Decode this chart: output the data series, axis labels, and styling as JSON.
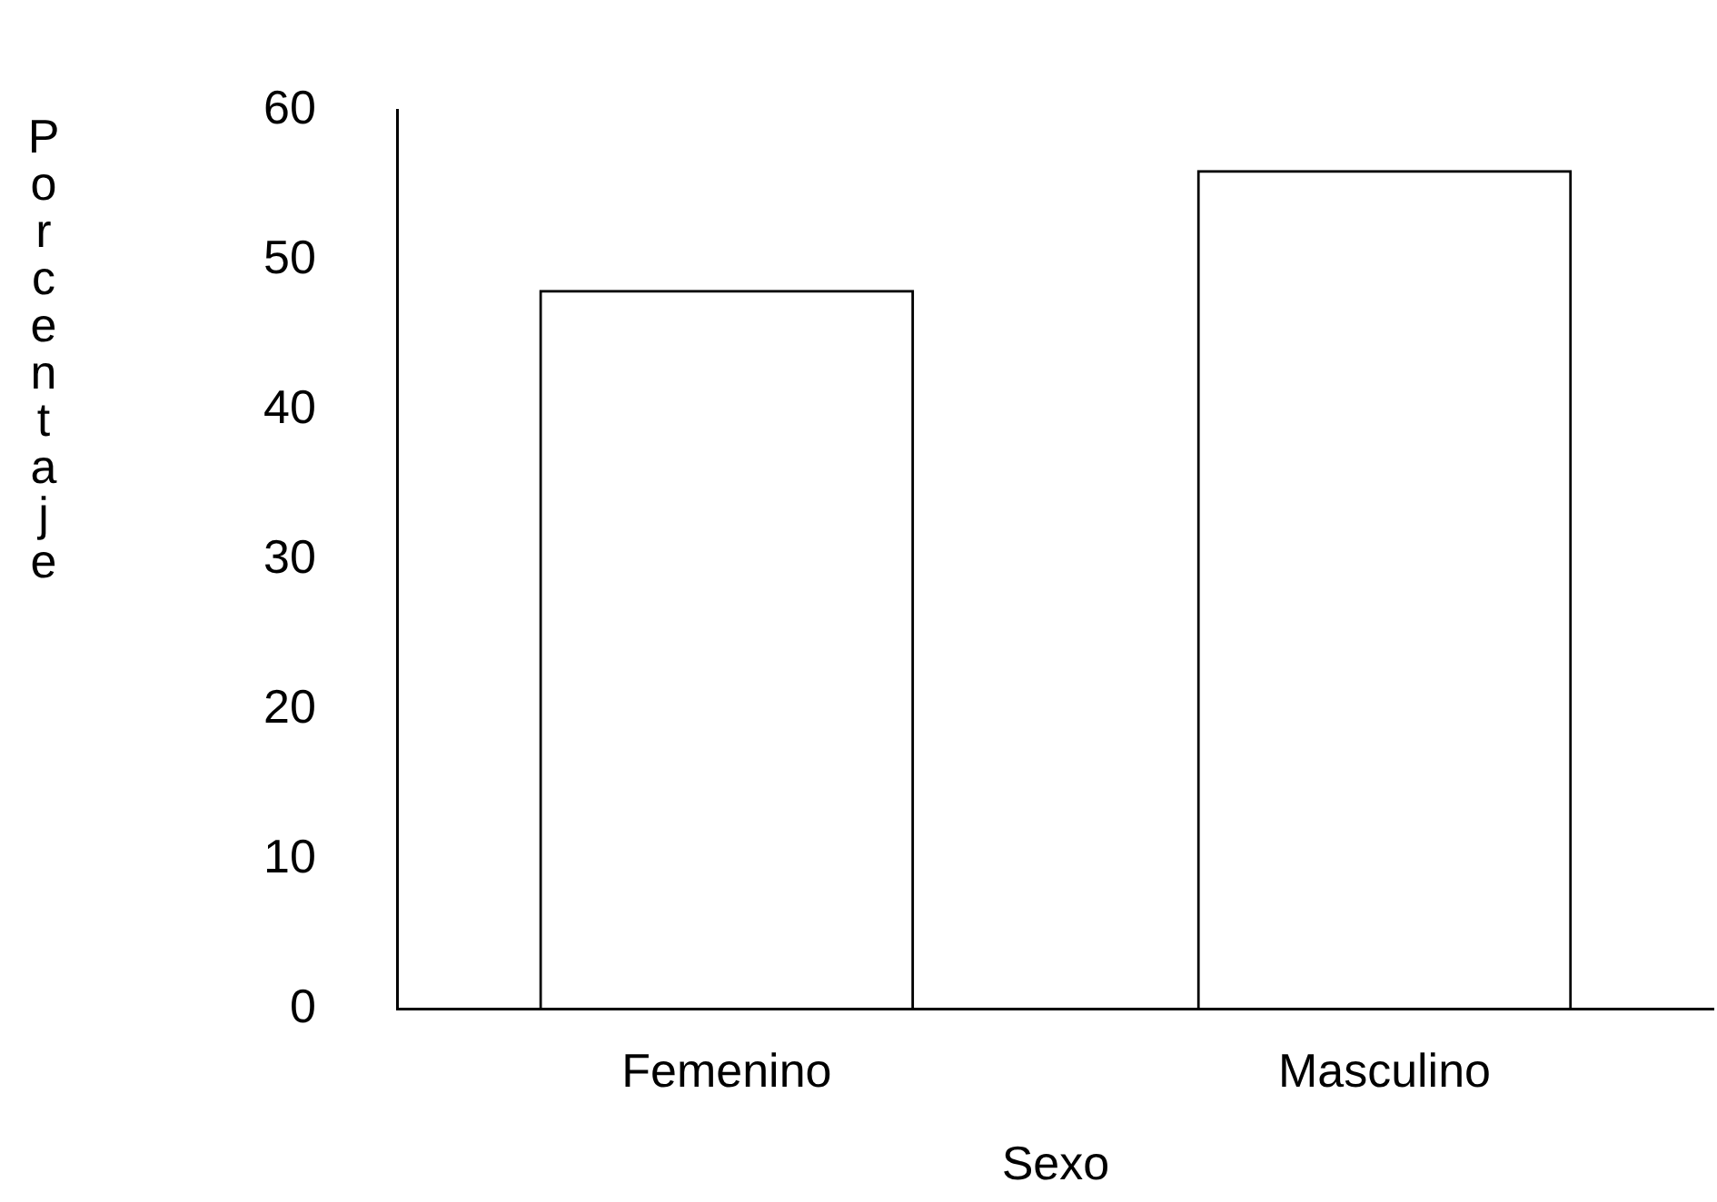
{
  "chart_data": {
    "type": "bar",
    "xlabel": "Sexo",
    "ylabel": "Porcentaje",
    "categories": [
      "Femenino",
      "Masculino"
    ],
    "values": [
      48,
      56
    ],
    "color": "#000000",
    "ylim": [
      0,
      60
    ],
    "yticks": [
      0,
      10,
      20,
      30,
      40,
      50,
      60
    ],
    "grid": false,
    "legend": false
  }
}
